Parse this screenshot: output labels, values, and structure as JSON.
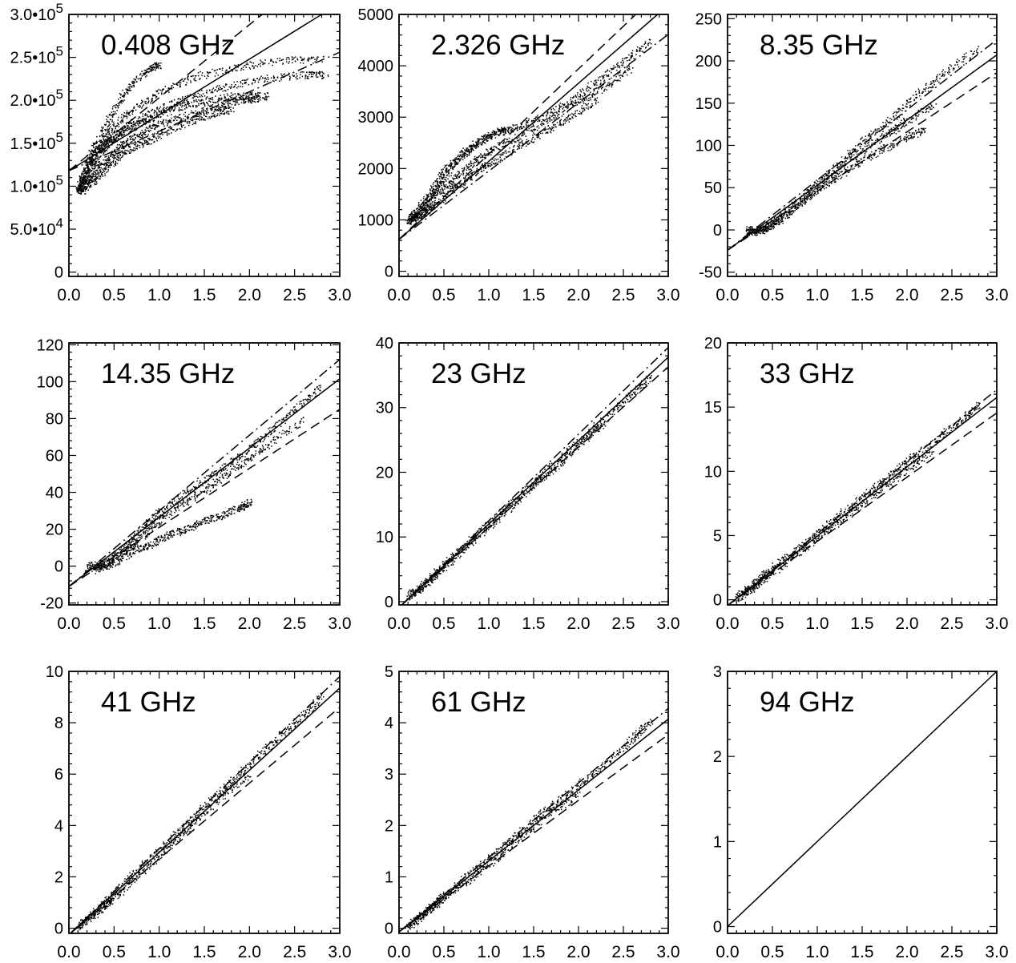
{
  "chart_data": [
    {
      "type": "scatter",
      "title": "0.408 GHz",
      "xlim": [
        0,
        3
      ],
      "ylim": [
        -5000,
        300000
      ],
      "x_ticks": [
        0,
        0.5,
        1.0,
        1.5,
        2.0,
        2.5,
        3.0
      ],
      "x_tick_labels": [
        "0.0",
        "0.5",
        "1.0",
        "1.5",
        "2.0",
        "2.5",
        "3.0"
      ],
      "y_ticks": [
        0,
        50000,
        100000,
        150000,
        200000,
        250000,
        300000
      ],
      "y_tick_labels": [
        "0",
        "5.0•10^4",
        "1.0•10^5",
        "1.5•10^5",
        "2.0•10^5",
        "2.5•10^5",
        "3.0•10^5"
      ],
      "fit_lines": [
        {
          "style": "solid",
          "intercept": 118000,
          "slope": 65000
        },
        {
          "style": "dashed",
          "intercept": 118000,
          "slope": 85000
        },
        {
          "style": "dashdot",
          "intercept": 118000,
          "slope": 46000
        }
      ],
      "scatter_tracks": [
        {
          "x": [
            0.1,
            0.2,
            0.35,
            0.5,
            0.7,
            1.0,
            1.4,
            1.9,
            2.4,
            2.8
          ],
          "y": [
            100000,
            125000,
            150000,
            170000,
            190000,
            210000,
            228000,
            240000,
            247000,
            248000
          ]
        },
        {
          "x": [
            0.1,
            0.2,
            0.35,
            0.5,
            0.7,
            1.0,
            1.3,
            1.7,
            2.1,
            2.6,
            2.85
          ],
          "y": [
            95000,
            120000,
            145000,
            160000,
            175000,
            190000,
            203000,
            215000,
            225000,
            230000,
            230000
          ]
        },
        {
          "x": [
            0.1,
            0.2,
            0.35,
            0.5,
            0.7,
            0.9,
            1.2,
            1.5,
            1.8,
            2.0,
            2.2
          ],
          "y": [
            95000,
            115000,
            140000,
            155000,
            168000,
            180000,
            192000,
            200000,
            205000,
            206000,
            205000
          ]
        },
        {
          "x": [
            0.1,
            0.2,
            0.3,
            0.45,
            0.6,
            0.8,
            1.0,
            1.3,
            1.6,
            1.9,
            2.1
          ],
          "y": [
            95000,
            105000,
            120000,
            135000,
            150000,
            162000,
            173000,
            183000,
            193000,
            200000,
            203000
          ]
        },
        {
          "x": [
            0.15,
            0.25,
            0.4,
            0.55,
            0.7,
            0.9,
            1.0
          ],
          "y": [
            110000,
            140000,
            170000,
            200000,
            220000,
            238000,
            242000
          ]
        },
        {
          "x": [
            0.15,
            0.3,
            0.45,
            0.6,
            0.8,
            1.0,
            1.3,
            1.6,
            1.8
          ],
          "y": [
            95000,
            110000,
            125000,
            140000,
            150000,
            160000,
            175000,
            185000,
            190000
          ]
        }
      ]
    },
    {
      "type": "scatter",
      "title": "2.326 GHz",
      "xlim": [
        0,
        3
      ],
      "ylim": [
        -100,
        5000
      ],
      "x_ticks": [
        0,
        0.5,
        1.0,
        1.5,
        2.0,
        2.5,
        3.0
      ],
      "x_tick_labels": [
        "0.0",
        "0.5",
        "1.0",
        "1.5",
        "2.0",
        "2.5",
        "3.0"
      ],
      "y_ticks": [
        0,
        1000,
        2000,
        3000,
        4000,
        5000
      ],
      "y_tick_labels": [
        "0",
        "1000",
        "2000",
        "3000",
        "4000",
        "5000"
      ],
      "fit_lines": [
        {
          "style": "solid",
          "intercept": 620,
          "slope": 1520
        },
        {
          "style": "dashed",
          "intercept": 620,
          "slope": 1660
        },
        {
          "style": "dashdot",
          "intercept": 620,
          "slope": 1330
        }
      ],
      "scatter_tracks": [
        {
          "x": [
            0.1,
            0.2,
            0.35,
            0.5,
            0.7,
            0.9,
            1.1,
            1.3,
            1.6,
            1.9,
            2.2,
            2.5,
            2.8
          ],
          "y": [
            1000,
            1200,
            1550,
            1950,
            2300,
            2550,
            2700,
            2800,
            3000,
            3300,
            3700,
            4100,
            4500
          ]
        },
        {
          "x": [
            0.1,
            0.25,
            0.4,
            0.6,
            0.8,
            1.0,
            1.3,
            1.6,
            2.0,
            2.3,
            2.6
          ],
          "y": [
            980,
            1200,
            1500,
            1800,
            2100,
            2350,
            2600,
            2900,
            3300,
            3600,
            4000
          ]
        },
        {
          "x": [
            0.1,
            0.25,
            0.4,
            0.6,
            0.8,
            1.0,
            1.3,
            1.6,
            1.9,
            2.2
          ],
          "y": [
            980,
            1100,
            1300,
            1600,
            1850,
            2100,
            2400,
            2700,
            3000,
            3350
          ]
        },
        {
          "x": [
            0.15,
            0.3,
            0.45,
            0.6,
            0.8,
            1.0,
            1.2
          ],
          "y": [
            1000,
            1300,
            1700,
            2100,
            2400,
            2650,
            2800
          ]
        }
      ]
    },
    {
      "type": "scatter",
      "title": "8.35 GHz",
      "xlim": [
        0,
        3
      ],
      "ylim": [
        -55,
        255
      ],
      "x_ticks": [
        0,
        0.5,
        1.0,
        1.5,
        2.0,
        2.5,
        3.0
      ],
      "x_tick_labels": [
        "0.0",
        "0.5",
        "1.0",
        "1.5",
        "2.0",
        "2.5",
        "3.0"
      ],
      "y_ticks": [
        -50,
        0,
        50,
        100,
        150,
        200,
        250
      ],
      "y_tick_labels": [
        "-50",
        "0",
        "50",
        "100",
        "150",
        "200",
        "250"
      ],
      "fit_lines": [
        {
          "style": "solid",
          "intercept": -24,
          "slope": 77
        },
        {
          "style": "dashed",
          "intercept": -24,
          "slope": 70
        },
        {
          "style": "dashdot",
          "intercept": -24,
          "slope": 83
        }
      ],
      "scatter_tracks": [
        {
          "x": [
            0.2,
            0.4,
            0.6,
            0.9,
            1.2,
            1.5,
            1.8,
            2.1,
            2.4,
            2.8
          ],
          "y": [
            0,
            2,
            18,
            45,
            75,
            105,
            130,
            160,
            185,
            215
          ]
        },
        {
          "x": [
            0.2,
            0.4,
            0.6,
            0.9,
            1.2,
            1.5,
            1.8,
            2.0,
            2.3
          ],
          "y": [
            -2,
            0,
            15,
            40,
            70,
            95,
            115,
            130,
            150
          ]
        },
        {
          "x": [
            0.3,
            0.5,
            0.8,
            1.1,
            1.4,
            1.7,
            2.0,
            2.2
          ],
          "y": [
            -3,
            5,
            30,
            55,
            75,
            95,
            110,
            120
          ]
        }
      ]
    },
    {
      "type": "scatter",
      "title": "14.35 GHz",
      "xlim": [
        0,
        3
      ],
      "ylim": [
        -21,
        121
      ],
      "x_ticks": [
        0,
        0.5,
        1.0,
        1.5,
        2.0,
        2.5,
        3.0
      ],
      "x_tick_labels": [
        "0.0",
        "0.5",
        "1.0",
        "1.5",
        "2.0",
        "2.5",
        "3.0"
      ],
      "y_ticks": [
        -20,
        0,
        20,
        40,
        60,
        80,
        100,
        120
      ],
      "y_tick_labels": [
        "-20",
        "0",
        "20",
        "40",
        "60",
        "80",
        "100",
        "120"
      ],
      "fit_lines": [
        {
          "style": "solid",
          "intercept": -11,
          "slope": 37.5
        },
        {
          "style": "dashed",
          "intercept": -11,
          "slope": 32
        },
        {
          "style": "dashdot",
          "intercept": -11,
          "slope": 41
        }
      ],
      "scatter_tracks": [
        {
          "x": [
            0.2,
            0.4,
            0.6,
            0.8,
            1.0,
            1.3,
            1.6,
            1.9,
            2.2,
            2.5,
            2.8
          ],
          "y": [
            0,
            2,
            10,
            20,
            30,
            40,
            50,
            60,
            72,
            85,
            98
          ]
        },
        {
          "x": [
            0.2,
            0.4,
            0.6,
            0.8,
            1.0,
            1.3,
            1.6,
            1.9,
            2.2,
            2.6
          ],
          "y": [
            -1,
            1,
            8,
            16,
            25,
            35,
            45,
            55,
            66,
            80
          ]
        },
        {
          "x": [
            0.3,
            0.5,
            0.7,
            0.9,
            1.1,
            1.3,
            1.5,
            1.7,
            1.9,
            2.0
          ],
          "y": [
            -2,
            2,
            8,
            12,
            17,
            20,
            25,
            28,
            32,
            35
          ]
        }
      ]
    },
    {
      "type": "scatter",
      "title": "23 GHz",
      "xlim": [
        0,
        3
      ],
      "ylim": [
        -0.5,
        40
      ],
      "x_ticks": [
        0,
        0.5,
        1.0,
        1.5,
        2.0,
        2.5,
        3.0
      ],
      "x_tick_labels": [
        "0.0",
        "0.5",
        "1.0",
        "1.5",
        "2.0",
        "2.5",
        "3.0"
      ],
      "y_ticks": [
        0,
        10,
        20,
        30,
        40
      ],
      "y_tick_labels": [
        "0",
        "10",
        "20",
        "30",
        "40"
      ],
      "fit_lines": [
        {
          "style": "solid",
          "intercept": -0.9,
          "slope": 12.9
        },
        {
          "style": "dashed",
          "intercept": -0.9,
          "slope": 12.4
        },
        {
          "style": "dashdot",
          "intercept": -0.9,
          "slope": 13.4
        }
      ],
      "scatter_tracks": [
        {
          "x": [
            0.1,
            0.3,
            0.5,
            0.8,
            1.1,
            1.4,
            1.7,
            2.0,
            2.3,
            2.6,
            2.8
          ],
          "y": [
            1,
            3,
            5.8,
            9.6,
            13.4,
            17.2,
            21,
            24.7,
            28.5,
            32.3,
            34.8
          ]
        },
        {
          "x": [
            0.1,
            0.3,
            0.5,
            0.8,
            1.1,
            1.4,
            1.7,
            2.0,
            2.3
          ],
          "y": [
            0.9,
            2.7,
            5.4,
            9.2,
            13,
            16.7,
            20.4,
            24.2,
            27.8
          ]
        }
      ]
    },
    {
      "type": "scatter",
      "title": "33 GHz",
      "xlim": [
        0,
        3
      ],
      "ylim": [
        -0.4,
        20
      ],
      "x_ticks": [
        0,
        0.5,
        1.0,
        1.5,
        2.0,
        2.5,
        3.0
      ],
      "x_tick_labels": [
        "0.0",
        "0.5",
        "1.0",
        "1.5",
        "2.0",
        "2.5",
        "3.0"
      ],
      "y_ticks": [
        0,
        5,
        10,
        15,
        20
      ],
      "y_tick_labels": [
        "0",
        "5",
        "10",
        "15",
        "20"
      ],
      "fit_lines": [
        {
          "style": "solid",
          "intercept": -0.45,
          "slope": 5.4
        },
        {
          "style": "dashed",
          "intercept": -0.45,
          "slope": 5.0
        },
        {
          "style": "dashdot",
          "intercept": -0.45,
          "slope": 5.6
        }
      ],
      "scatter_tracks": [
        {
          "x": [
            0.1,
            0.3,
            0.5,
            0.8,
            1.1,
            1.4,
            1.7,
            2.0,
            2.3,
            2.6,
            2.8
          ],
          "y": [
            0.2,
            1.3,
            2.5,
            4.1,
            5.8,
            7.5,
            9.1,
            10.8,
            12.3,
            14,
            15.2
          ]
        },
        {
          "x": [
            0.1,
            0.3,
            0.5,
            0.8,
            1.1,
            1.4,
            1.7,
            2.0,
            2.3
          ],
          "y": [
            0.1,
            1.0,
            2.2,
            3.8,
            5.4,
            7,
            8.6,
            10.2,
            11.8
          ]
        }
      ]
    },
    {
      "type": "scatter",
      "title": "41 GHz",
      "xlim": [
        0,
        3
      ],
      "ylim": [
        -0.2,
        10
      ],
      "x_ticks": [
        0,
        0.5,
        1.0,
        1.5,
        2.0,
        2.5,
        3.0
      ],
      "x_tick_labels": [
        "0.0",
        "0.5",
        "1.0",
        "1.5",
        "2.0",
        "2.5",
        "3.0"
      ],
      "y_ticks": [
        0,
        2,
        4,
        6,
        8,
        10
      ],
      "y_tick_labels": [
        "0",
        "2",
        "4",
        "6",
        "8",
        "10"
      ],
      "fit_lines": [
        {
          "style": "solid",
          "intercept": -0.25,
          "slope": 3.2
        },
        {
          "style": "dashed",
          "intercept": -0.25,
          "slope": 2.95
        },
        {
          "style": "dashdot",
          "intercept": -0.25,
          "slope": 3.35
        }
      ],
      "scatter_tracks": [
        {
          "x": [
            0.1,
            0.3,
            0.5,
            0.8,
            1.1,
            1.4,
            1.7,
            2.0,
            2.3,
            2.6,
            2.8
          ],
          "y": [
            0.1,
            0.7,
            1.4,
            2.4,
            3.4,
            4.4,
            5.4,
            6.4,
            7.4,
            8.3,
            9.1
          ]
        },
        {
          "x": [
            0.1,
            0.3,
            0.5,
            0.8,
            1.1,
            1.4,
            1.7,
            2.0
          ],
          "y": [
            0.1,
            0.6,
            1.2,
            2.2,
            3.2,
            4.2,
            5.2,
            6.0
          ]
        }
      ]
    },
    {
      "type": "scatter",
      "title": "61 GHz",
      "xlim": [
        0,
        3
      ],
      "ylim": [
        -0.1,
        5
      ],
      "x_ticks": [
        0,
        0.5,
        1.0,
        1.5,
        2.0,
        2.5,
        3.0
      ],
      "x_tick_labels": [
        "0.0",
        "0.5",
        "1.0",
        "1.5",
        "2.0",
        "2.5",
        "3.0"
      ],
      "y_ticks": [
        0,
        1,
        2,
        3,
        4,
        5
      ],
      "y_tick_labels": [
        "0",
        "1",
        "2",
        "3",
        "4",
        "5"
      ],
      "fit_lines": [
        {
          "style": "solid",
          "intercept": -0.07,
          "slope": 1.38
        },
        {
          "style": "dashed",
          "intercept": -0.07,
          "slope": 1.28
        },
        {
          "style": "dashdot",
          "intercept": -0.07,
          "slope": 1.45
        }
      ],
      "scatter_tracks": [
        {
          "x": [
            0.1,
            0.3,
            0.5,
            0.8,
            1.1,
            1.4,
            1.7,
            2.0,
            2.3,
            2.6,
            2.8
          ],
          "y": [
            0.05,
            0.35,
            0.65,
            1.1,
            1.5,
            1.95,
            2.4,
            2.8,
            3.2,
            3.7,
            4.05
          ]
        },
        {
          "x": [
            0.1,
            0.3,
            0.5,
            0.8,
            1.1,
            1.4,
            1.7,
            2.0
          ],
          "y": [
            0.05,
            0.3,
            0.6,
            1.0,
            1.4,
            1.85,
            2.3,
            2.6
          ]
        }
      ]
    },
    {
      "type": "line",
      "title": "94 GHz",
      "xlim": [
        0,
        3
      ],
      "ylim": [
        -0.08,
        3
      ],
      "x_ticks": [
        0,
        0.5,
        1.0,
        1.5,
        2.0,
        2.5,
        3.0
      ],
      "x_tick_labels": [
        "0.0",
        "0.5",
        "1.0",
        "1.5",
        "2.0",
        "2.5",
        "3.0"
      ],
      "y_ticks": [
        0,
        1,
        2,
        3
      ],
      "y_tick_labels": [
        "0",
        "1",
        "2",
        "3"
      ],
      "fit_lines": [
        {
          "style": "solid",
          "intercept": 0,
          "slope": 1.0
        }
      ],
      "scatter_tracks": []
    }
  ]
}
